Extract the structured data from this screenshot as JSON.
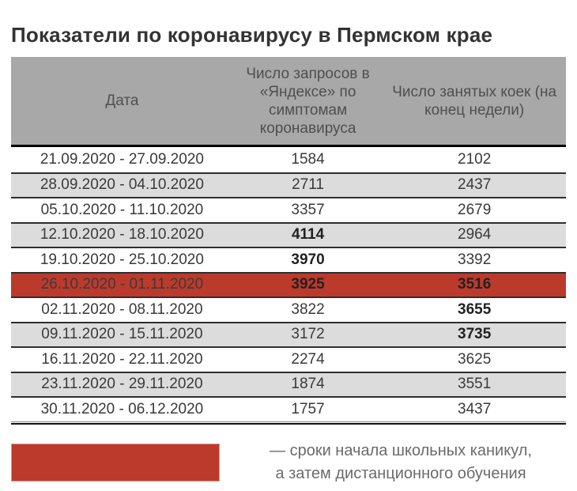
{
  "title": "Показатели по коронавирусу в Пермском крае",
  "colors": {
    "header_bg": "#a8a8a8",
    "stripe_bg": "#dcdcdc",
    "highlight_red": "#bc3a2c",
    "text_dark": "#3a3a3a",
    "legend_text": "#6b6b6b"
  },
  "table": {
    "headers": {
      "date": "Дата",
      "requests": "Число запросов в «Яндексе» по симптомам коронавируса",
      "beds": "Число занятых коек (на конец недели)"
    },
    "rows": [
      {
        "date": "21.09.2020 - 27.09.2020",
        "requests": "1584",
        "beds": "2102",
        "requests_bold": false,
        "beds_bold": false,
        "highlight": false
      },
      {
        "date": "28.09.2020 - 04.10.2020",
        "requests": "2711",
        "beds": "2437",
        "requests_bold": false,
        "beds_bold": false,
        "highlight": false
      },
      {
        "date": "05.10.2020 - 11.10.2020",
        "requests": "3357",
        "beds": "2679",
        "requests_bold": false,
        "beds_bold": false,
        "highlight": false
      },
      {
        "date": "12.10.2020 - 18.10.2020",
        "requests": "4114",
        "beds": "2964",
        "requests_bold": true,
        "beds_bold": false,
        "highlight": false
      },
      {
        "date": "19.10.2020 - 25.10.2020",
        "requests": "3970",
        "beds": "3392",
        "requests_bold": true,
        "beds_bold": false,
        "highlight": false
      },
      {
        "date": "26.10.2020 - 01.11.2020",
        "requests": "3925",
        "beds": "3516",
        "requests_bold": true,
        "beds_bold": true,
        "highlight": true
      },
      {
        "date": "02.11.2020 - 08.11.2020",
        "requests": "3822",
        "beds": "3655",
        "requests_bold": false,
        "beds_bold": true,
        "highlight": false
      },
      {
        "date": "09.11.2020 - 15.11.2020",
        "requests": "3172",
        "beds": "3735",
        "requests_bold": false,
        "beds_bold": true,
        "highlight": false
      },
      {
        "date": "16.11.2020 - 22.11.2020",
        "requests": "2274",
        "beds": "3625",
        "requests_bold": false,
        "beds_bold": false,
        "highlight": false
      },
      {
        "date": "23.11.2020 - 29.11.2020",
        "requests": "1874",
        "beds": "3551",
        "requests_bold": false,
        "beds_bold": false,
        "highlight": false
      },
      {
        "date": "30.11.2020 - 06.12.2020",
        "requests": "1757",
        "beds": "3437",
        "requests_bold": false,
        "beds_bold": false,
        "highlight": false
      }
    ]
  },
  "legend": {
    "line1": "— сроки начала школьных каникул,",
    "line2": "а затем дистанционного обучения"
  },
  "chart_data": {
    "type": "table",
    "title": "Показатели по коронавирусу в Пермском крае",
    "columns": [
      "Дата",
      "Число запросов в «Яндексе» по симптомам коронавируса",
      "Число занятых коек (на конец недели)"
    ],
    "categories": [
      "21.09.2020 - 27.09.2020",
      "28.09.2020 - 04.10.2020",
      "05.10.2020 - 11.10.2020",
      "12.10.2020 - 18.10.2020",
      "19.10.2020 - 25.10.2020",
      "26.10.2020 - 01.11.2020",
      "02.11.2020 - 08.11.2020",
      "09.11.2020 - 15.11.2020",
      "16.11.2020 - 22.11.2020",
      "23.11.2020 - 29.11.2020",
      "30.11.2020 - 06.12.2020"
    ],
    "series": [
      {
        "name": "Число запросов в «Яндексе» по симптомам коронавируса",
        "values": [
          1584,
          2711,
          3357,
          4114,
          3970,
          3925,
          3822,
          3172,
          2274,
          1874,
          1757
        ]
      },
      {
        "name": "Число занятых коек (на конец недели)",
        "values": [
          2102,
          2437,
          2679,
          2964,
          3392,
          3516,
          3655,
          3735,
          3625,
          3551,
          3437
        ]
      }
    ],
    "annotations": [
      {
        "category": "26.10.2020 - 01.11.2020",
        "highlight_color": "#bc3a2c",
        "meaning": "сроки начала школьных каникул, а затем дистанционного обучения"
      }
    ],
    "legend_position": "bottom"
  }
}
